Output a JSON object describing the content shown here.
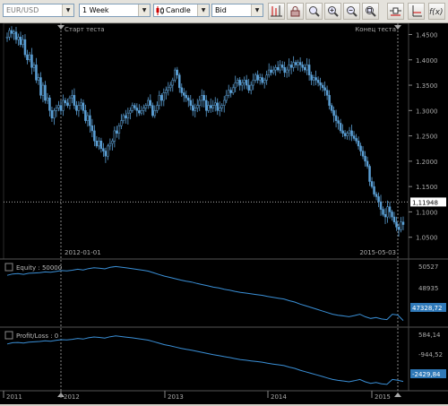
{
  "toolbar": {
    "symbol": "EUR/USD",
    "timeframe": "1 Week",
    "chart_type": "Candle",
    "price_side": "Bid",
    "buttons": [
      "indicator-icon",
      "lock-icon",
      "zoom-icon",
      "zoom-in-icon",
      "zoom-out-icon",
      "zoom-fit-icon",
      "line-tool-icon",
      "level-tool-icon",
      "function-icon"
    ]
  },
  "price_panel": {
    "start_marker": "Старт теста",
    "end_marker": "Конец теста",
    "start_date": "2012-01-01",
    "end_date": "2015-05-03",
    "current_price": "1,11948",
    "y_ticks": [
      "1.4500",
      "1.4000",
      "1.3500",
      "1.3000",
      "1.2500",
      "1.2000",
      "1.1500",
      "1.1000",
      "1.0500"
    ]
  },
  "equity_panel": {
    "title": "Equity : 50000",
    "y_ticks": [
      "50527",
      "48935"
    ],
    "current": "47328,72"
  },
  "pl_panel": {
    "title": "Profit/Loss : 0",
    "y_ticks": [
      "584,14",
      "-944,52"
    ],
    "current": "-2429,84"
  },
  "x_axis": [
    "2011",
    "2012",
    "2013",
    "2014",
    "2015"
  ],
  "colors": {
    "candle": "#5b9fd4",
    "line": "#3a8fd6",
    "badge": "#2f79b8"
  },
  "chart_data": [
    {
      "type": "line",
      "title": "",
      "series": [
        {
          "values": [
            1.445,
            1.458,
            1.452,
            1.455,
            1.44,
            1.445,
            1.43,
            1.44,
            1.41,
            1.4,
            1.41,
            1.385,
            1.39,
            1.36,
            1.365,
            1.33,
            1.35,
            1.32,
            1.325,
            1.3,
            1.285,
            1.3,
            1.305,
            1.31,
            1.3,
            1.32,
            1.315,
            1.31,
            1.325,
            1.33,
            1.31,
            1.3,
            1.31,
            1.315,
            1.3,
            1.28,
            1.29,
            1.27,
            1.26,
            1.24,
            1.23,
            1.24,
            1.225,
            1.22,
            1.21,
            1.23,
            1.235,
            1.24,
            1.26,
            1.255,
            1.27,
            1.28,
            1.29,
            1.285,
            1.295,
            1.3,
            1.31,
            1.305,
            1.3,
            1.295,
            1.3,
            1.305,
            1.31,
            1.32,
            1.31,
            1.29,
            1.3,
            1.31,
            1.33,
            1.32,
            1.335,
            1.34,
            1.345,
            1.35,
            1.36,
            1.38,
            1.37,
            1.345,
            1.335,
            1.33,
            1.325,
            1.32,
            1.31,
            1.3,
            1.305,
            1.31,
            1.32,
            1.33,
            1.32,
            1.3,
            1.31,
            1.305,
            1.31,
            1.315,
            1.3,
            1.305,
            1.31,
            1.32,
            1.33,
            1.34,
            1.335,
            1.345,
            1.355,
            1.36,
            1.35,
            1.355,
            1.36,
            1.35,
            1.34,
            1.35,
            1.36,
            1.37,
            1.36,
            1.365,
            1.355,
            1.36,
            1.37,
            1.38,
            1.375,
            1.38,
            1.385,
            1.38,
            1.39,
            1.385,
            1.375,
            1.38,
            1.39,
            1.385,
            1.395,
            1.39,
            1.395,
            1.39,
            1.385,
            1.38,
            1.39,
            1.37,
            1.36,
            1.365,
            1.36,
            1.355,
            1.35,
            1.345,
            1.34,
            1.33,
            1.31,
            1.3,
            1.29,
            1.28,
            1.275,
            1.26,
            1.255,
            1.25,
            1.255,
            1.26,
            1.25,
            1.245,
            1.24,
            1.23,
            1.22,
            1.21,
            1.2,
            1.19,
            1.16,
            1.15,
            1.135,
            1.13,
            1.12,
            1.105,
            1.095,
            1.09,
            1.11,
            1.1,
            1.09,
            1.08,
            1.07,
            1.065,
            1.08,
            1.075
          ]
        }
      ],
      "ylim": [
        1.03,
        1.465
      ],
      "ticks": [
        1.45,
        1.4,
        1.35,
        1.3,
        1.25,
        1.2,
        1.15,
        1.1,
        1.05
      ]
    },
    {
      "type": "line",
      "title": "Equity : 50000",
      "series": [
        {
          "values": [
            50000,
            50080,
            50100,
            50060,
            50120,
            50140,
            50160,
            50200,
            50180,
            50230,
            50280,
            50260,
            50300,
            50360,
            50320,
            50400,
            50450,
            50420,
            50380,
            50470,
            50520,
            50480,
            50440,
            50400,
            50350,
            50300,
            50250,
            50150,
            50050,
            49950,
            49880,
            49800,
            49720,
            49650,
            49600,
            49520,
            49450,
            49380,
            49300,
            49250,
            49180,
            49120,
            49050,
            48990,
            48950,
            48900,
            48860,
            48820,
            48750,
            48700,
            48650,
            48600,
            48500,
            48420,
            48300,
            48200,
            48100,
            48000,
            47900,
            47800,
            47700,
            47640,
            47600,
            47550,
            47620,
            47700,
            47550,
            47450,
            47500,
            47420,
            47380,
            47700,
            47650,
            47328.72
          ]
        }
      ],
      "ylim": [
        47200,
        50700
      ]
    },
    {
      "type": "line",
      "title": "Profit/Loss : 0",
      "series": [
        {
          "values": [
            0,
            80,
            100,
            60,
            120,
            140,
            160,
            200,
            180,
            230,
            280,
            260,
            300,
            360,
            320,
            400,
            450,
            420,
            380,
            470,
            520,
            480,
            440,
            400,
            350,
            300,
            250,
            150,
            50,
            -50,
            -120,
            -200,
            -280,
            -350,
            -400,
            -480,
            -550,
            -620,
            -700,
            -750,
            -820,
            -880,
            -950,
            -1010,
            -1050,
            -1100,
            -1140,
            -1180,
            -1250,
            -1300,
            -1350,
            -1400,
            -1500,
            -1580,
            -1700,
            -1800,
            -1900,
            -2000,
            -2100,
            -2200,
            -2300,
            -2360,
            -2400,
            -2450,
            -2380,
            -2300,
            -2450,
            -2550,
            -2500,
            -2580,
            -2620,
            -2300,
            -2350,
            -2429.84
          ]
        }
      ],
      "ylim": [
        -2800,
        800
      ]
    }
  ]
}
